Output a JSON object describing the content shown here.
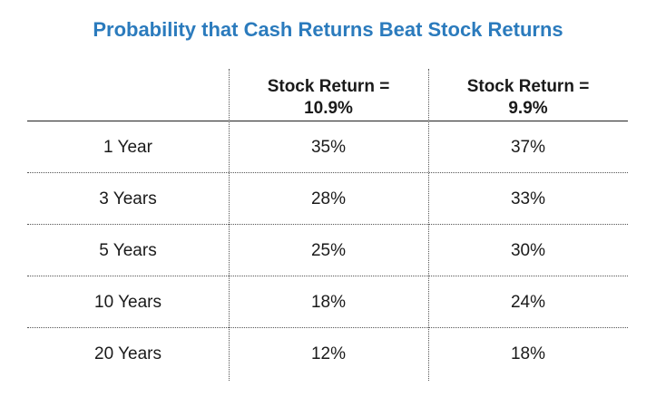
{
  "chart_data": {
    "type": "table",
    "title": "Probability that Cash Returns Beat Stock Returns",
    "columns": [
      {
        "line1": "Stock Return =",
        "line2": "10.9%"
      },
      {
        "line1": "Stock Return =",
        "line2": "9.9%"
      }
    ],
    "rows": [
      {
        "label": "1 Year",
        "values": [
          "35%",
          "37%"
        ]
      },
      {
        "label": "3 Years",
        "values": [
          "28%",
          "33%"
        ]
      },
      {
        "label": "5 Years",
        "values": [
          "25%",
          "30%"
        ]
      },
      {
        "label": "10 Years",
        "values": [
          "18%",
          "24%"
        ]
      },
      {
        "label": "20 Years",
        "values": [
          "12%",
          "18%"
        ]
      }
    ],
    "title_color": "#2b7bbd"
  }
}
